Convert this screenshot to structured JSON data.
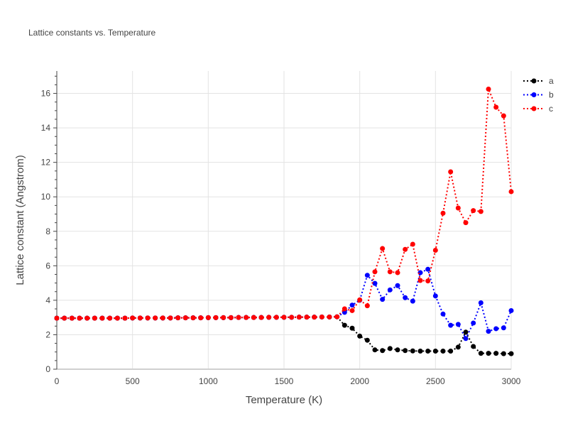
{
  "chart_data": {
    "type": "line",
    "title": "Lattice constants vs. Temperature",
    "xlabel": "Temperature (K)",
    "ylabel": "Lattice constant (Angstrom)",
    "xlim": [
      0,
      3000
    ],
    "ylim": [
      0,
      17.3
    ],
    "xticks": [
      0,
      500,
      1000,
      1500,
      2000,
      2500,
      3000
    ],
    "yticks": [
      0,
      2,
      4,
      6,
      8,
      10,
      12,
      14,
      16
    ],
    "grid": true,
    "legend_position": "top-right",
    "line_style": "dotted-with-markers",
    "x": [
      0,
      50,
      100,
      150,
      200,
      250,
      300,
      350,
      400,
      450,
      500,
      550,
      600,
      650,
      700,
      750,
      800,
      850,
      900,
      950,
      1000,
      1050,
      1100,
      1150,
      1200,
      1250,
      1300,
      1350,
      1400,
      1450,
      1500,
      1550,
      1600,
      1650,
      1700,
      1750,
      1800,
      1850,
      1900,
      1950,
      2000,
      2050,
      2100,
      2150,
      2200,
      2250,
      2300,
      2350,
      2400,
      2450,
      2500,
      2550,
      2600,
      2650,
      2700,
      2750,
      2800,
      2850,
      2900,
      2950,
      3000
    ],
    "series": [
      {
        "name": "a",
        "color": "#000000",
        "values": [
          2.96,
          2.96,
          2.96,
          2.96,
          2.96,
          2.96,
          2.96,
          2.96,
          2.96,
          2.96,
          2.97,
          2.97,
          2.97,
          2.97,
          2.97,
          2.97,
          2.98,
          2.98,
          2.98,
          2.98,
          2.99,
          2.99,
          2.99,
          2.99,
          3.0,
          3.0,
          3.0,
          3.0,
          3.01,
          3.01,
          3.01,
          3.01,
          3.02,
          3.02,
          3.02,
          3.03,
          3.03,
          3.04,
          2.55,
          2.38,
          1.92,
          1.68,
          1.12,
          1.08,
          1.2,
          1.12,
          1.08,
          1.06,
          1.05,
          1.05,
          1.05,
          1.05,
          1.05,
          1.28,
          2.15,
          1.32,
          0.92,
          0.92,
          0.92,
          0.9,
          0.9
        ]
      },
      {
        "name": "b",
        "color": "#0000ff",
        "values": [
          2.96,
          2.96,
          2.96,
          2.96,
          2.96,
          2.96,
          2.96,
          2.96,
          2.96,
          2.96,
          2.97,
          2.97,
          2.97,
          2.97,
          2.97,
          2.97,
          2.98,
          2.98,
          2.98,
          2.98,
          2.99,
          2.99,
          2.99,
          2.99,
          3.0,
          3.0,
          3.0,
          3.0,
          3.01,
          3.01,
          3.01,
          3.01,
          3.02,
          3.02,
          3.02,
          3.03,
          3.03,
          3.04,
          3.3,
          3.72,
          4.0,
          5.45,
          4.98,
          4.05,
          4.6,
          4.85,
          4.15,
          3.95,
          5.6,
          5.8,
          4.25,
          3.2,
          2.55,
          2.6,
          1.78,
          2.68,
          3.85,
          2.2,
          2.35,
          2.4,
          3.4
        ]
      },
      {
        "name": "c",
        "color": "#ff0000",
        "values": [
          2.96,
          2.96,
          2.96,
          2.96,
          2.96,
          2.96,
          2.96,
          2.96,
          2.96,
          2.96,
          2.97,
          2.97,
          2.97,
          2.97,
          2.97,
          2.97,
          2.98,
          2.98,
          2.98,
          2.98,
          2.99,
          2.99,
          2.99,
          2.99,
          3.0,
          3.0,
          3.0,
          3.0,
          3.01,
          3.01,
          3.01,
          3.01,
          3.02,
          3.02,
          3.02,
          3.03,
          3.03,
          3.04,
          3.5,
          3.4,
          4.02,
          3.68,
          5.65,
          7.0,
          5.65,
          5.6,
          6.95,
          7.25,
          5.15,
          5.12,
          6.9,
          9.05,
          11.45,
          9.35,
          8.5,
          9.2,
          9.15,
          16.25,
          15.2,
          14.7,
          10.3
        ]
      }
    ]
  }
}
